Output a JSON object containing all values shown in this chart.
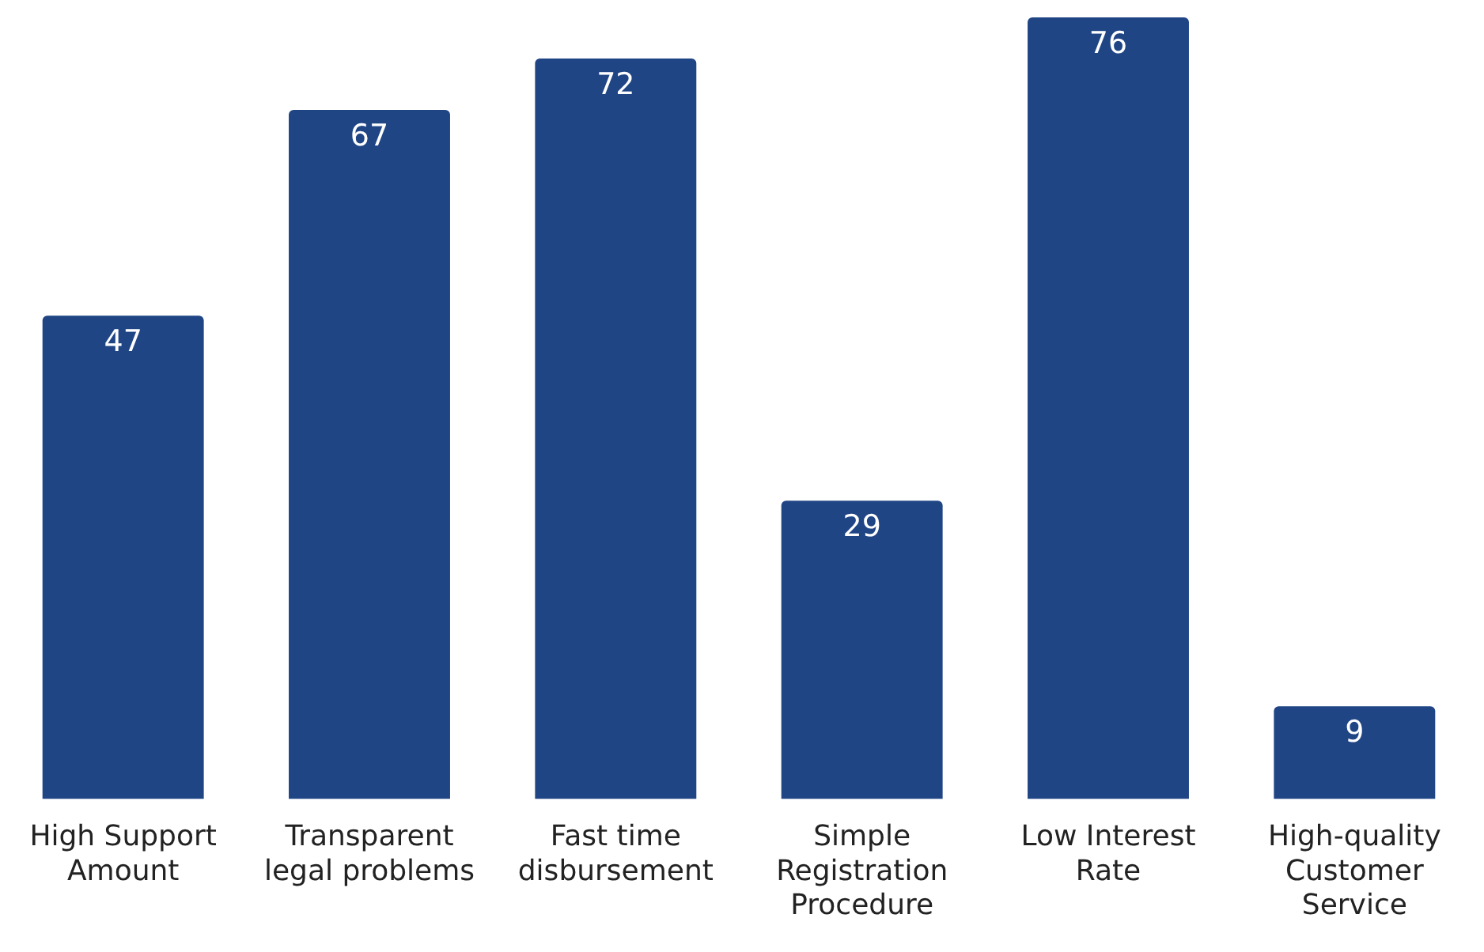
{
  "chart_data": {
    "type": "bar",
    "categories": [
      "High Support Amount",
      "Transparent legal problems",
      "Fast time disbursement",
      "Simple Registration Procedure",
      "Low Interest Rate",
      "High-quality Customer Service"
    ],
    "values": [
      47,
      67,
      72,
      29,
      76,
      9
    ],
    "color": "#1f4585",
    "data_labels": true,
    "grid": false,
    "legend": false
  }
}
